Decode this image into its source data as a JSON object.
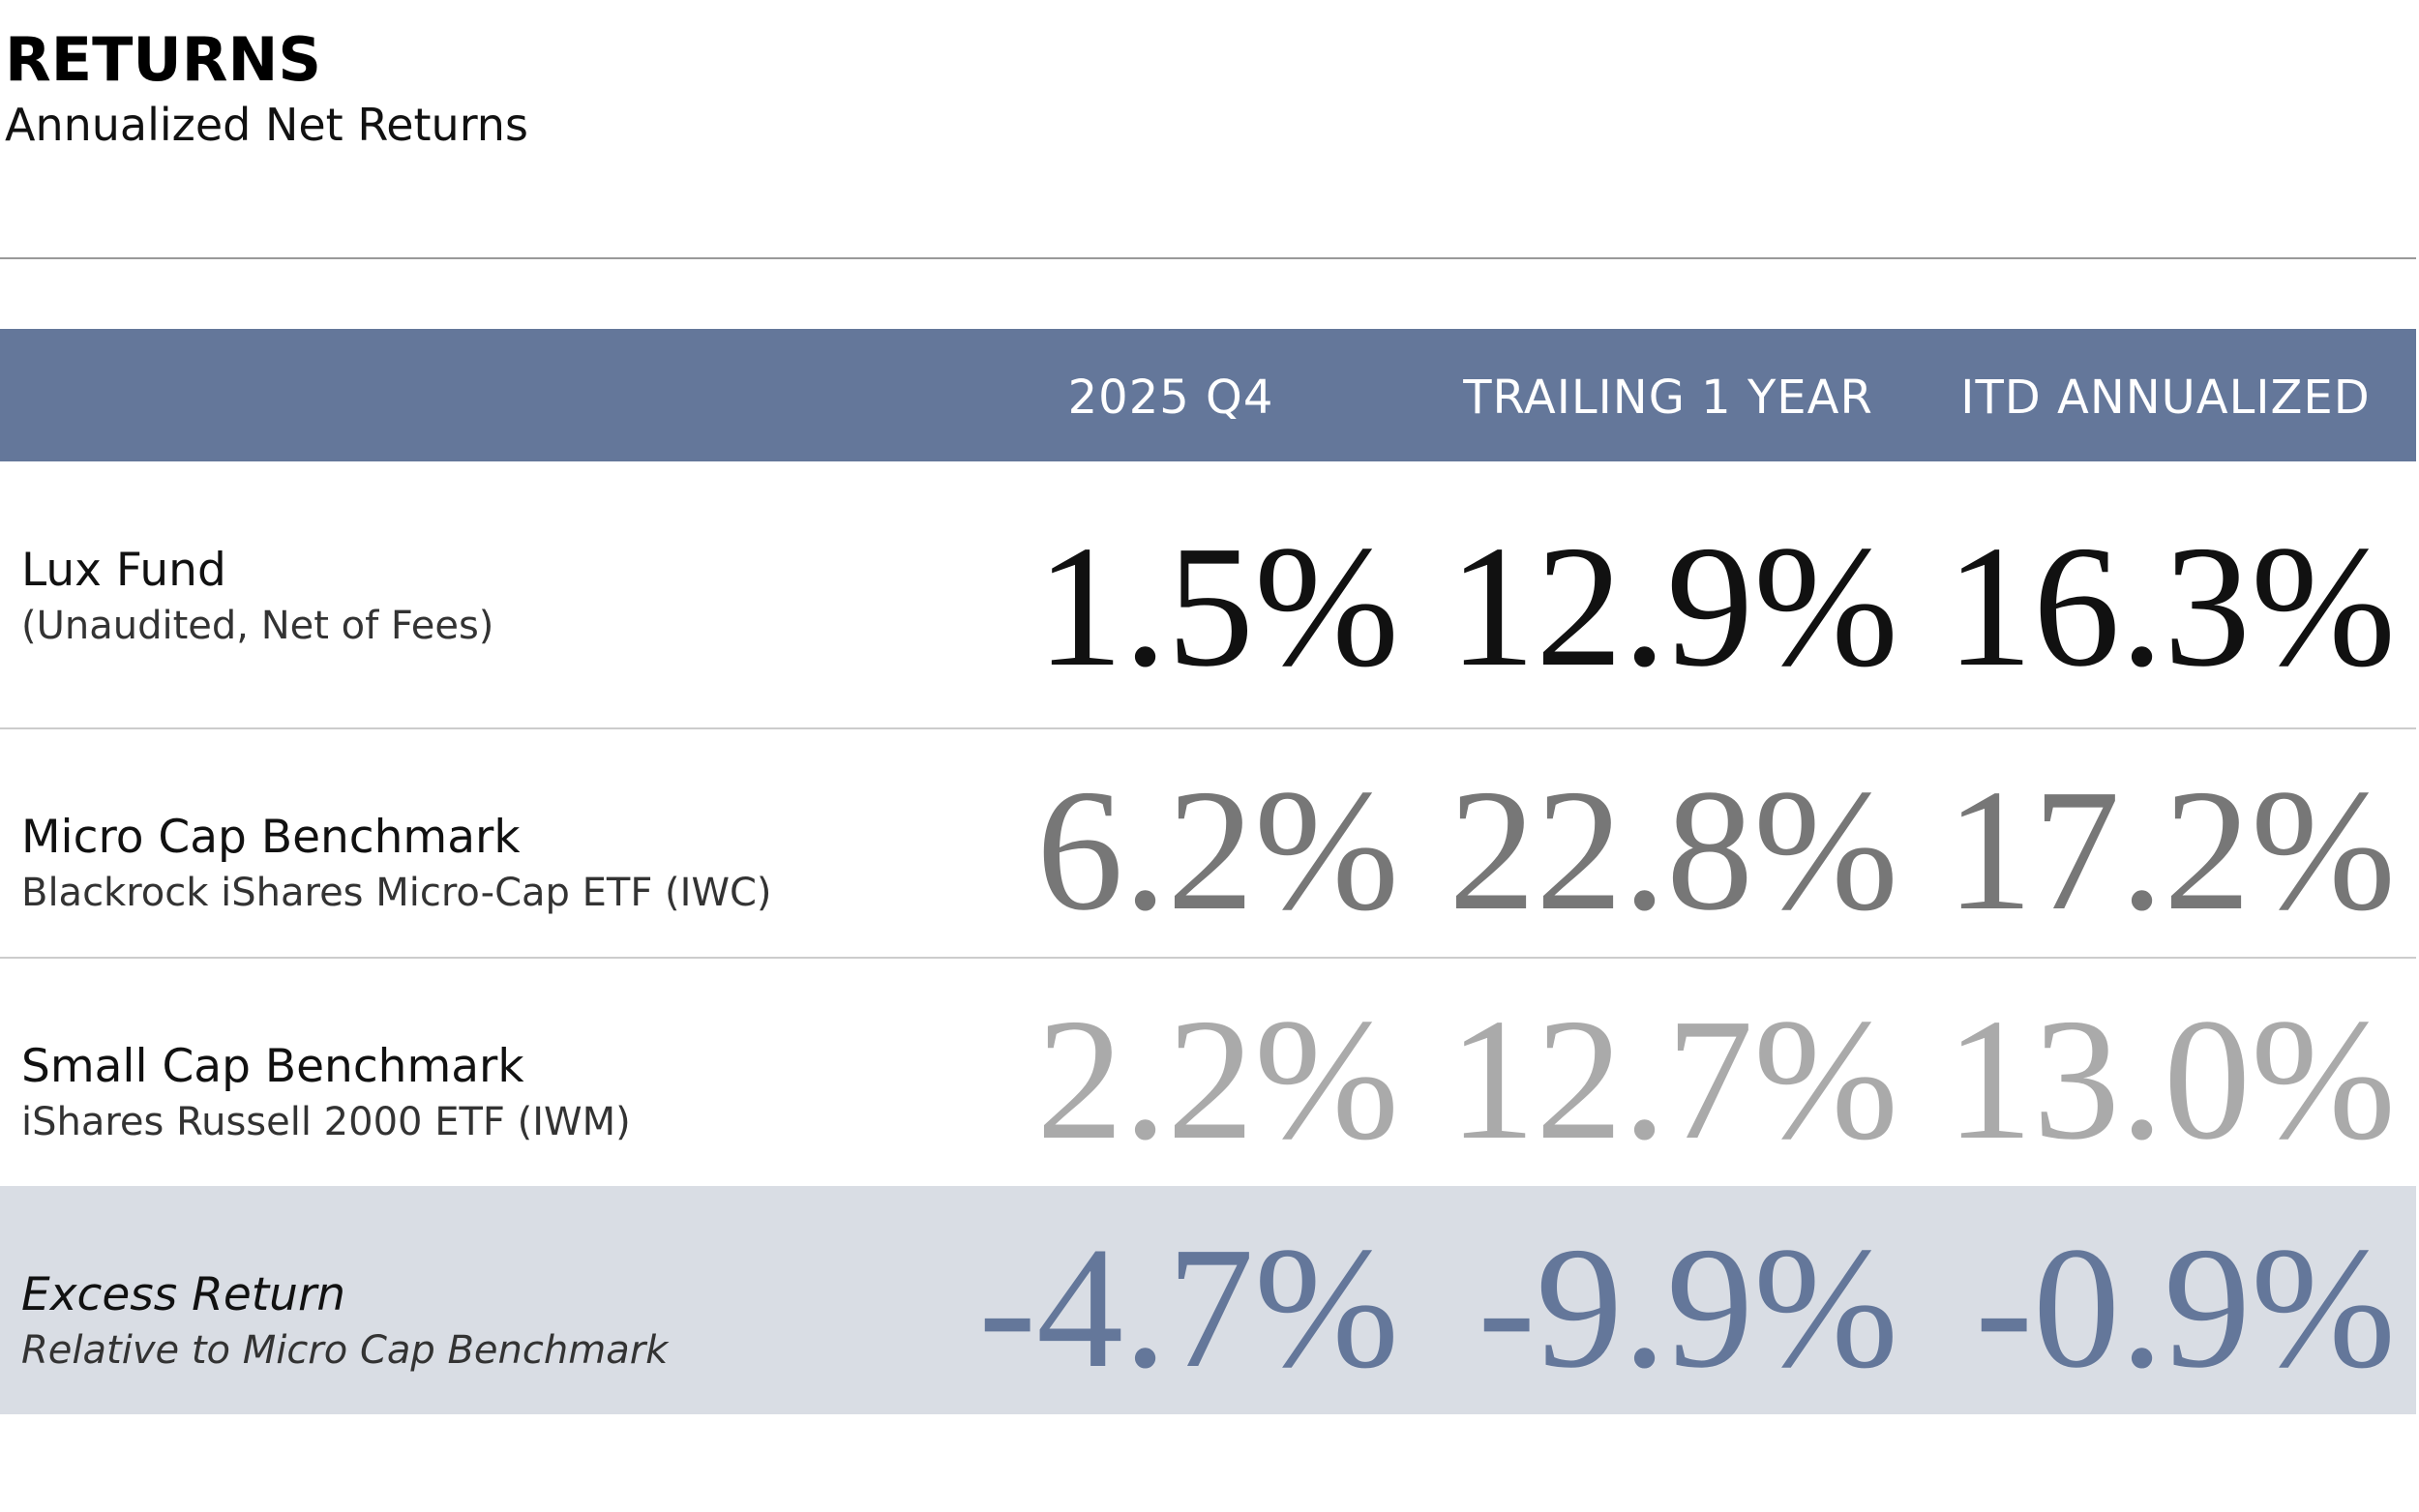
{
  "header": {
    "title": "RETURNS",
    "subtitle": "Annualized Net Returns"
  },
  "table": {
    "columns": [
      "2025 Q4",
      "TRAILING 1 YEAR",
      "ITD ANNUALIZED"
    ],
    "rows": [
      {
        "label": "Lux Fund",
        "sublabel": "(Unaudited, Net of Fees)",
        "values": [
          "1.5%",
          "12.9%",
          "16.3%"
        ]
      },
      {
        "label": "Micro Cap Benchmark",
        "sublabel": "Blackrock iShares Micro-Cap ETF (IWC)",
        "values": [
          "6.2%",
          "22.8%",
          "17.2%"
        ]
      },
      {
        "label": "Small Cap Benchmark",
        "sublabel": "iShares Russell 2000 ETF (IWM)",
        "values": [
          "2.2%",
          "12.7%",
          "13.0%"
        ]
      },
      {
        "label": "Excess Return",
        "sublabel": "Relative to Micro Cap Benchmark",
        "values": [
          "-4.7%",
          "-9.9%",
          "-0.9%"
        ]
      }
    ]
  }
}
